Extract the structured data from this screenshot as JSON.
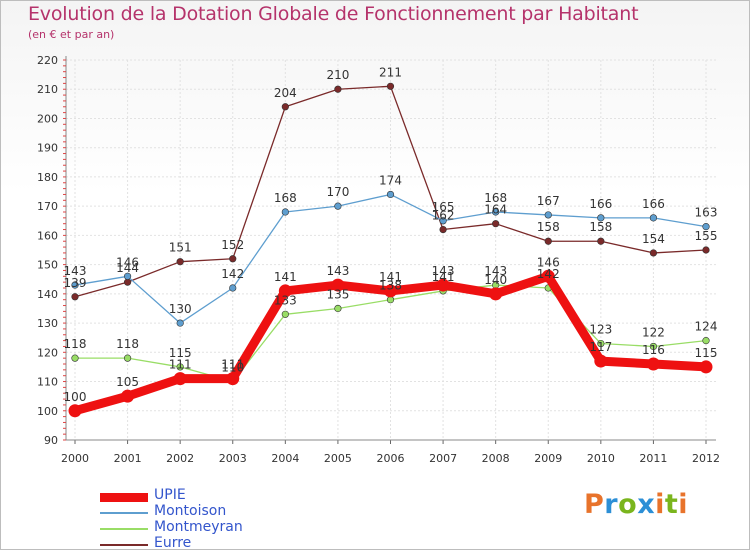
{
  "header": {
    "title": "Evolution de la Dotation Globale de Fonctionnement par Habitant",
    "subtitle": "(en € et par an)"
  },
  "logo": {
    "text": "Proxiti",
    "colors": [
      "#e8732b",
      "#2c8fd6",
      "#7ab51d",
      "#2c8fd6",
      "#e8732b",
      "#7ab51d",
      "#e8732b"
    ]
  },
  "chart_data": {
    "type": "line",
    "x": [
      "2000",
      "2001",
      "2002",
      "2003",
      "2004",
      "2005",
      "2006",
      "2007",
      "2008",
      "2009",
      "2010",
      "2011",
      "2012"
    ],
    "ylim": [
      90,
      220
    ],
    "yticks": [
      90,
      100,
      110,
      120,
      130,
      140,
      150,
      160,
      170,
      180,
      190,
      200,
      210,
      220
    ],
    "grid": true,
    "legend_position": "bottom-left",
    "series": [
      {
        "name": "UPIE",
        "color": "#ee1111",
        "values": [
          100,
          105,
          111,
          111,
          141,
          143,
          141,
          143,
          140,
          146,
          117,
          116,
          115
        ]
      },
      {
        "name": "Montoison",
        "color": "#5e9ecf",
        "values": [
          143,
          146,
          130,
          142,
          168,
          170,
          174,
          165,
          168,
          167,
          166,
          166,
          163
        ]
      },
      {
        "name": "Montmeyran",
        "color": "#99dd66",
        "values": [
          118,
          118,
          115,
          110,
          133,
          135,
          138,
          141,
          143,
          142,
          123,
          122,
          124
        ]
      },
      {
        "name": "Eurre",
        "color": "#7a2a2a",
        "values": [
          139,
          144,
          151,
          152,
          204,
          210,
          211,
          162,
          164,
          158,
          158,
          154,
          155
        ]
      }
    ]
  }
}
